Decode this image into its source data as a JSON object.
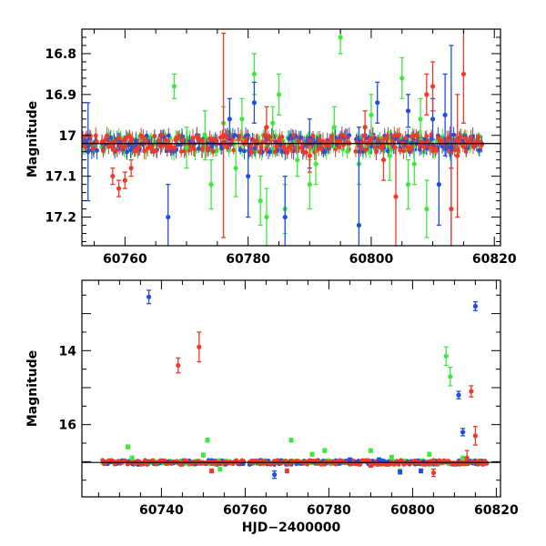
{
  "colors": {
    "green": "#3ee83e",
    "blue": "#1f4fe0",
    "red": "#f03a28",
    "reference_line": "#000000"
  },
  "chart_data": [
    {
      "type": "scatter",
      "ylabel": "Magnitude",
      "xlabel": "",
      "xlim": [
        60753,
        60821
      ],
      "ylim": [
        17.27,
        16.74
      ],
      "y_inverted": true,
      "reference_magnitude": 17.02,
      "x_ticks": [
        60760,
        60780,
        60800,
        60820
      ],
      "x_tick_labels": [
        "60760",
        "60780",
        "60800",
        "60820"
      ],
      "y_ticks": [
        16.8,
        16.9,
        17.0,
        17.1,
        17.2
      ],
      "y_tick_labels": [
        "16.8",
        "16.9",
        "17",
        "17.1",
        "17.2"
      ],
      "series": [
        {
          "color": "green",
          "points": [
            {
              "x": 60768,
              "y": 16.88,
              "err": 0.03
            },
            {
              "x": 60770,
              "y": 17.03,
              "err": 0.05
            },
            {
              "x": 60773,
              "y": 17.0,
              "err": 0.06
            },
            {
              "x": 60774,
              "y": 17.12,
              "err": 0.06
            },
            {
              "x": 60776,
              "y": 16.97,
              "err": 0.04
            },
            {
              "x": 60778,
              "y": 17.08,
              "err": 0.07
            },
            {
              "x": 60779,
              "y": 16.96,
              "err": 0.05
            },
            {
              "x": 60781,
              "y": 16.85,
              "err": 0.05
            },
            {
              "x": 60782,
              "y": 17.16,
              "err": 0.06
            },
            {
              "x": 60783,
              "y": 17.2,
              "err": 0.07
            },
            {
              "x": 60784,
              "y": 16.97,
              "err": 0.04
            },
            {
              "x": 60785,
              "y": 16.9,
              "err": 0.05
            },
            {
              "x": 60786,
              "y": 17.18,
              "err": 0.06
            },
            {
              "x": 60788,
              "y": 17.06,
              "err": 0.04
            },
            {
              "x": 60790,
              "y": 17.12,
              "err": 0.06
            },
            {
              "x": 60791,
              "y": 17.07,
              "err": 0.05
            },
            {
              "x": 60794,
              "y": 16.98,
              "err": 0.05
            },
            {
              "x": 60795,
              "y": 16.76,
              "err": 0.04
            },
            {
              "x": 60798,
              "y": 17.07,
              "err": 0.05
            },
            {
              "x": 60800,
              "y": 16.95,
              "err": 0.05
            },
            {
              "x": 60803,
              "y": 17.05,
              "err": 0.06
            },
            {
              "x": 60805,
              "y": 16.86,
              "err": 0.05
            },
            {
              "x": 60806,
              "y": 17.12,
              "err": 0.06
            },
            {
              "x": 60807,
              "y": 17.07,
              "err": 0.05
            },
            {
              "x": 60808,
              "y": 16.96,
              "err": 0.05
            },
            {
              "x": 60809,
              "y": 17.18,
              "err": 0.07
            }
          ]
        },
        {
          "color": "blue",
          "points": [
            {
              "x": 60754,
              "y": 17.04,
              "err": 0.12
            },
            {
              "x": 60767,
              "y": 17.2,
              "err": 0.08
            },
            {
              "x": 60777,
              "y": 16.96,
              "err": 0.05
            },
            {
              "x": 60780,
              "y": 17.1,
              "err": 0.1
            },
            {
              "x": 60781,
              "y": 16.92,
              "err": 0.05
            },
            {
              "x": 60786,
              "y": 17.2,
              "err": 0.1
            },
            {
              "x": 60790,
              "y": 17.02,
              "err": 0.06
            },
            {
              "x": 60798,
              "y": 17.22,
              "err": 0.24
            },
            {
              "x": 60801,
              "y": 16.92,
              "err": 0.05
            },
            {
              "x": 60806,
              "y": 16.94,
              "err": 0.04
            },
            {
              "x": 60810,
              "y": 16.96,
              "err": 0.05
            },
            {
              "x": 60811,
              "y": 17.12,
              "err": 0.1
            },
            {
              "x": 60812,
              "y": 16.95,
              "err": 0.1
            },
            {
              "x": 60813,
              "y": 17.03,
              "err": 0.25
            }
          ]
        },
        {
          "color": "red",
          "points": [
            {
              "x": 60758,
              "y": 17.1,
              "err": 0.02
            },
            {
              "x": 60759,
              "y": 17.13,
              "err": 0.02
            },
            {
              "x": 60760,
              "y": 17.11,
              "err": 0.02
            },
            {
              "x": 60761,
              "y": 17.08,
              "err": 0.02
            },
            {
              "x": 60776,
              "y": 17.0,
              "err": 0.25
            },
            {
              "x": 60783,
              "y": 16.98,
              "err": 0.05
            },
            {
              "x": 60790,
              "y": 17.05,
              "err": 0.04
            },
            {
              "x": 60799,
              "y": 16.98,
              "err": 0.04
            },
            {
              "x": 60802,
              "y": 17.06,
              "err": 0.05
            },
            {
              "x": 60804,
              "y": 17.15,
              "err": 0.12
            },
            {
              "x": 60809,
              "y": 16.9,
              "err": 0.05
            },
            {
              "x": 60810,
              "y": 16.88,
              "err": 0.06
            },
            {
              "x": 60813,
              "y": 17.18,
              "err": 0.1
            },
            {
              "x": 60814,
              "y": 17.05,
              "err": 0.15
            },
            {
              "x": 60815,
              "y": 16.85,
              "err": 0.12
            }
          ]
        }
      ]
    },
    {
      "type": "scatter",
      "ylabel": "Magnitude",
      "xlabel": "HJD−2400000",
      "xlim": [
        60721,
        60821
      ],
      "ylim": [
        17.95,
        12.1
      ],
      "y_inverted": true,
      "reference_magnitude": 17.02,
      "x_ticks": [
        60740,
        60760,
        60780,
        60800,
        60820
      ],
      "x_tick_labels": [
        "60740",
        "60760",
        "60780",
        "60800",
        "60820"
      ],
      "y_ticks": [
        14,
        16
      ],
      "y_tick_labels": [
        "14",
        "16"
      ],
      "series": [
        {
          "color": "green",
          "points": [
            {
              "x": 60732,
              "y": 16.6,
              "err": 0.05
            },
            {
              "x": 60733,
              "y": 16.9,
              "err": 0.05
            },
            {
              "x": 60750,
              "y": 16.82,
              "err": 0.05
            },
            {
              "x": 60751,
              "y": 16.42,
              "err": 0.05
            },
            {
              "x": 60754,
              "y": 17.2,
              "err": 0.05
            },
            {
              "x": 60771,
              "y": 16.42,
              "err": 0.05
            },
            {
              "x": 60776,
              "y": 16.8,
              "err": 0.05
            },
            {
              "x": 60779,
              "y": 16.7,
              "err": 0.05
            },
            {
              "x": 60790,
              "y": 16.7,
              "err": 0.05
            },
            {
              "x": 60795,
              "y": 16.88,
              "err": 0.05
            },
            {
              "x": 60797,
              "y": 17.25,
              "err": 0.05
            },
            {
              "x": 60804,
              "y": 16.8,
              "err": 0.05
            },
            {
              "x": 60808,
              "y": 14.15,
              "err": 0.25
            },
            {
              "x": 60809,
              "y": 14.7,
              "err": 0.25
            },
            {
              "x": 60812,
              "y": 16.9,
              "err": 0.05
            }
          ]
        },
        {
          "color": "blue",
          "points": [
            {
              "x": 60737,
              "y": 12.55,
              "err": 0.18
            },
            {
              "x": 60767,
              "y": 17.35,
              "err": 0.1
            },
            {
              "x": 60785,
              "y": 16.95,
              "err": 0.05
            },
            {
              "x": 60792,
              "y": 16.95,
              "err": 0.05
            },
            {
              "x": 60797,
              "y": 17.28,
              "err": 0.05
            },
            {
              "x": 60802,
              "y": 17.25,
              "err": 0.05
            },
            {
              "x": 60811,
              "y": 15.2,
              "err": 0.1
            },
            {
              "x": 60812,
              "y": 16.2,
              "err": 0.1
            },
            {
              "x": 60815,
              "y": 12.8,
              "err": 0.12
            }
          ]
        },
        {
          "color": "red",
          "points": [
            {
              "x": 60744,
              "y": 14.4,
              "err": 0.2
            },
            {
              "x": 60749,
              "y": 13.9,
              "err": 0.4
            },
            {
              "x": 60752,
              "y": 17.25,
              "err": 0.05
            },
            {
              "x": 60770,
              "y": 17.25,
              "err": 0.05
            },
            {
              "x": 60790,
              "y": 17.1,
              "err": 0.05
            },
            {
              "x": 60805,
              "y": 17.3,
              "err": 0.1
            },
            {
              "x": 60813,
              "y": 16.9,
              "err": 0.2
            },
            {
              "x": 60814,
              "y": 15.1,
              "err": 0.15
            },
            {
              "x": 60815,
              "y": 16.3,
              "err": 0.25
            }
          ]
        }
      ]
    }
  ]
}
